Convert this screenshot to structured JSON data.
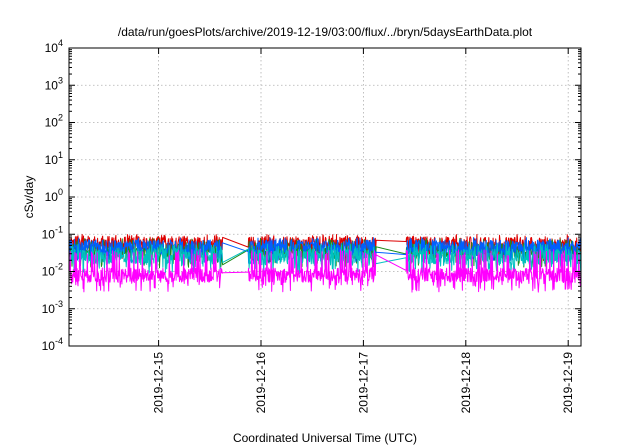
{
  "chart_data": {
    "type": "line",
    "title": "/data/run/goesPlots/archive/2019-12-19/03:00/flux/../bryn/5daysEarthData.plot",
    "xlabel": "Coordinated Universal Time (UTC)",
    "ylabel": "cSv/day",
    "y_scale": "log",
    "ylim": [
      0.0001,
      10000
    ],
    "y_ticks": [
      {
        "value": 0.0001,
        "exp": "-4"
      },
      {
        "value": 0.001,
        "exp": "-3"
      },
      {
        "value": 0.01,
        "exp": "-2"
      },
      {
        "value": 0.1,
        "exp": "-1"
      },
      {
        "value": 1,
        "exp": "0"
      },
      {
        "value": 10,
        "exp": "1"
      },
      {
        "value": 100,
        "exp": "2"
      },
      {
        "value": 1000,
        "exp": "3"
      },
      {
        "value": 10000,
        "exp": "4"
      }
    ],
    "y_tick_base": "10",
    "xlim": [
      "2019-12-14T03:00",
      "2019-12-19T03:00"
    ],
    "x_ticks": [
      "2019-12-15",
      "2019-12-16",
      "2019-12-17",
      "2019-12-18",
      "2019-12-19"
    ],
    "grid": true,
    "gaps": [
      {
        "start": "2019-12-15T15:00",
        "end": "2019-12-15T21:00"
      },
      {
        "start": "2019-12-17T03:00",
        "end": "2019-12-17T10:00"
      }
    ],
    "series": [
      {
        "color": "#dd0000",
        "typical": 0.055,
        "peak": 0.09
      },
      {
        "color": "#1a8c1a",
        "typical": 0.035,
        "peak": 0.07
      },
      {
        "color": "#0060ff",
        "typical": 0.045,
        "peak": 0.075
      },
      {
        "color": "#00c0c0",
        "typical": 0.025,
        "peak": 0.05
      },
      {
        "color": "#ff00ff",
        "typical": 0.008,
        "peak": 0.035
      }
    ]
  }
}
